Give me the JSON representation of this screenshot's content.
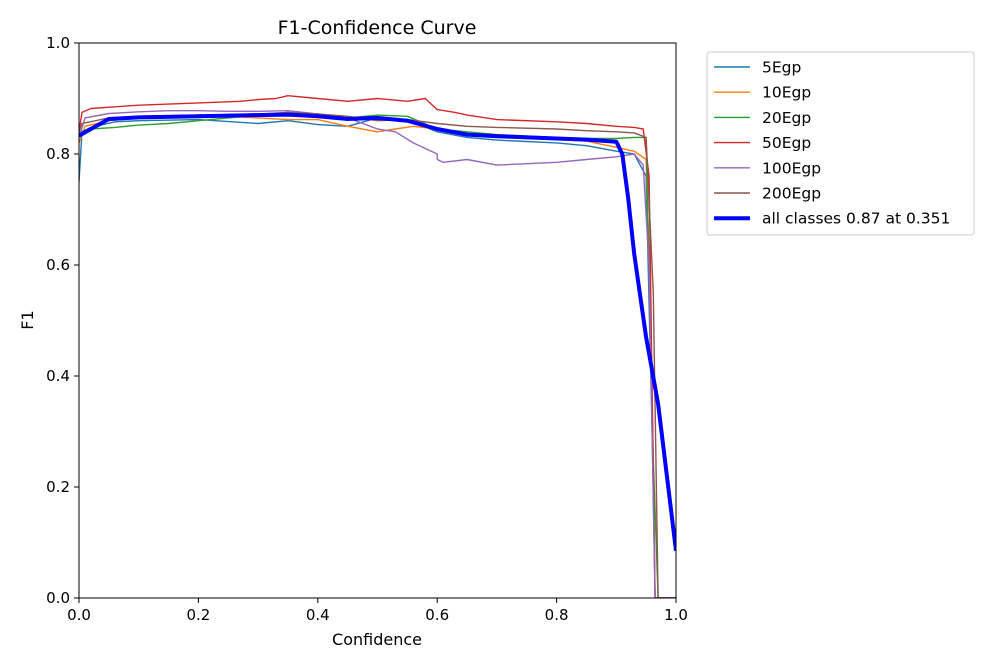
{
  "chart_data": {
    "type": "line",
    "title": "F1-Confidence Curve",
    "xlabel": "Confidence",
    "ylabel": "F1",
    "xlim": [
      0,
      1
    ],
    "ylim": [
      0,
      1
    ],
    "xticks": [
      "0.0",
      "0.2",
      "0.4",
      "0.6",
      "0.8",
      "1.0"
    ],
    "yticks": [
      "0.0",
      "0.2",
      "0.4",
      "0.6",
      "0.8",
      "1.0"
    ],
    "grid": false,
    "legend_placement": "outside upper right",
    "series": [
      {
        "name": "5Egp",
        "color": "#1f77b4",
        "width": "thin",
        "x": [
          0.0,
          0.005,
          0.02,
          0.06,
          0.1,
          0.2,
          0.3,
          0.35,
          0.4,
          0.45,
          0.5,
          0.55,
          0.6,
          0.65,
          0.7,
          0.8,
          0.85,
          0.9,
          0.93,
          0.95,
          0.96,
          0.965,
          0.97,
          1.0
        ],
        "y": [
          0.75,
          0.84,
          0.848,
          0.858,
          0.86,
          0.862,
          0.855,
          0.86,
          0.853,
          0.85,
          0.865,
          0.862,
          0.84,
          0.83,
          0.825,
          0.82,
          0.815,
          0.805,
          0.8,
          0.76,
          0.3,
          0.0,
          0.0,
          0.0
        ]
      },
      {
        "name": "10Egp",
        "color": "#ff7f0e",
        "width": "thin",
        "x": [
          0.0,
          0.01,
          0.05,
          0.1,
          0.2,
          0.3,
          0.35,
          0.4,
          0.45,
          0.5,
          0.53,
          0.56,
          0.6,
          0.65,
          0.7,
          0.8,
          0.85,
          0.9,
          0.93,
          0.95,
          0.958,
          0.965,
          1.0
        ],
        "y": [
          0.82,
          0.85,
          0.86,
          0.865,
          0.87,
          0.865,
          0.862,
          0.862,
          0.85,
          0.84,
          0.845,
          0.85,
          0.845,
          0.835,
          0.83,
          0.826,
          0.823,
          0.812,
          0.805,
          0.79,
          0.5,
          0.0,
          0.0
        ]
      },
      {
        "name": "20Egp",
        "color": "#2ca02c",
        "width": "thin",
        "x": [
          0.0,
          0.02,
          0.06,
          0.1,
          0.15,
          0.2,
          0.25,
          0.3,
          0.35,
          0.4,
          0.45,
          0.5,
          0.55,
          0.6,
          0.65,
          0.7,
          0.8,
          0.85,
          0.9,
          0.93,
          0.95,
          0.962,
          0.97,
          1.0
        ],
        "y": [
          0.84,
          0.845,
          0.848,
          0.852,
          0.855,
          0.86,
          0.865,
          0.87,
          0.875,
          0.872,
          0.865,
          0.87,
          0.868,
          0.845,
          0.84,
          0.835,
          0.83,
          0.828,
          0.828,
          0.83,
          0.83,
          0.25,
          0.0,
          0.0
        ]
      },
      {
        "name": "50Egp",
        "color": "#d62728",
        "width": "thin",
        "x": [
          0.0,
          0.005,
          0.02,
          0.06,
          0.1,
          0.2,
          0.27,
          0.3,
          0.33,
          0.35,
          0.4,
          0.45,
          0.5,
          0.55,
          0.58,
          0.6,
          0.63,
          0.65,
          0.7,
          0.8,
          0.85,
          0.9,
          0.93,
          0.945,
          0.955,
          0.965,
          0.97,
          1.0
        ],
        "y": [
          0.84,
          0.875,
          0.882,
          0.885,
          0.888,
          0.892,
          0.895,
          0.898,
          0.9,
          0.905,
          0.9,
          0.895,
          0.9,
          0.895,
          0.9,
          0.88,
          0.875,
          0.87,
          0.862,
          0.858,
          0.855,
          0.85,
          0.848,
          0.845,
          0.76,
          0.0,
          0.0,
          0.0
        ]
      },
      {
        "name": "100Egp",
        "color": "#9467bd",
        "width": "thin",
        "x": [
          0.0,
          0.01,
          0.05,
          0.1,
          0.15,
          0.2,
          0.25,
          0.3,
          0.35,
          0.4,
          0.45,
          0.5,
          0.53,
          0.56,
          0.6,
          0.6,
          0.61,
          0.65,
          0.7,
          0.8,
          0.85,
          0.9,
          0.93,
          0.945,
          0.955,
          0.965,
          1.0
        ],
        "y": [
          0.83,
          0.865,
          0.873,
          0.876,
          0.878,
          0.878,
          0.877,
          0.877,
          0.878,
          0.872,
          0.865,
          0.845,
          0.84,
          0.82,
          0.8,
          0.79,
          0.785,
          0.79,
          0.78,
          0.785,
          0.79,
          0.795,
          0.8,
          0.78,
          0.6,
          0.0,
          0.0
        ]
      },
      {
        "name": "200Egp",
        "color": "#8c564b",
        "width": "thin",
        "x": [
          0.0,
          0.005,
          0.05,
          0.1,
          0.2,
          0.3,
          0.35,
          0.4,
          0.45,
          0.5,
          0.55,
          0.6,
          0.65,
          0.7,
          0.8,
          0.85,
          0.9,
          0.93,
          0.95,
          0.962,
          0.97,
          1.0
        ],
        "y": [
          0.84,
          0.855,
          0.865,
          0.868,
          0.87,
          0.872,
          0.875,
          0.872,
          0.868,
          0.86,
          0.862,
          0.855,
          0.85,
          0.848,
          0.845,
          0.842,
          0.84,
          0.838,
          0.83,
          0.55,
          0.0,
          0.0
        ]
      },
      {
        "name": "all classes 0.87 at 0.351",
        "color": "#0000ff",
        "width": "thick",
        "x": [
          0.0,
          0.02,
          0.05,
          0.1,
          0.2,
          0.3,
          0.351,
          0.4,
          0.45,
          0.5,
          0.55,
          0.6,
          0.65,
          0.7,
          0.8,
          0.85,
          0.9,
          0.91,
          0.92,
          0.93,
          0.95,
          0.97,
          1.0
        ],
        "y": [
          0.833,
          0.845,
          0.863,
          0.866,
          0.868,
          0.87,
          0.871,
          0.868,
          0.863,
          0.865,
          0.86,
          0.845,
          0.835,
          0.832,
          0.828,
          0.826,
          0.822,
          0.8,
          0.72,
          0.62,
          0.47,
          0.35,
          0.085
        ]
      }
    ]
  }
}
